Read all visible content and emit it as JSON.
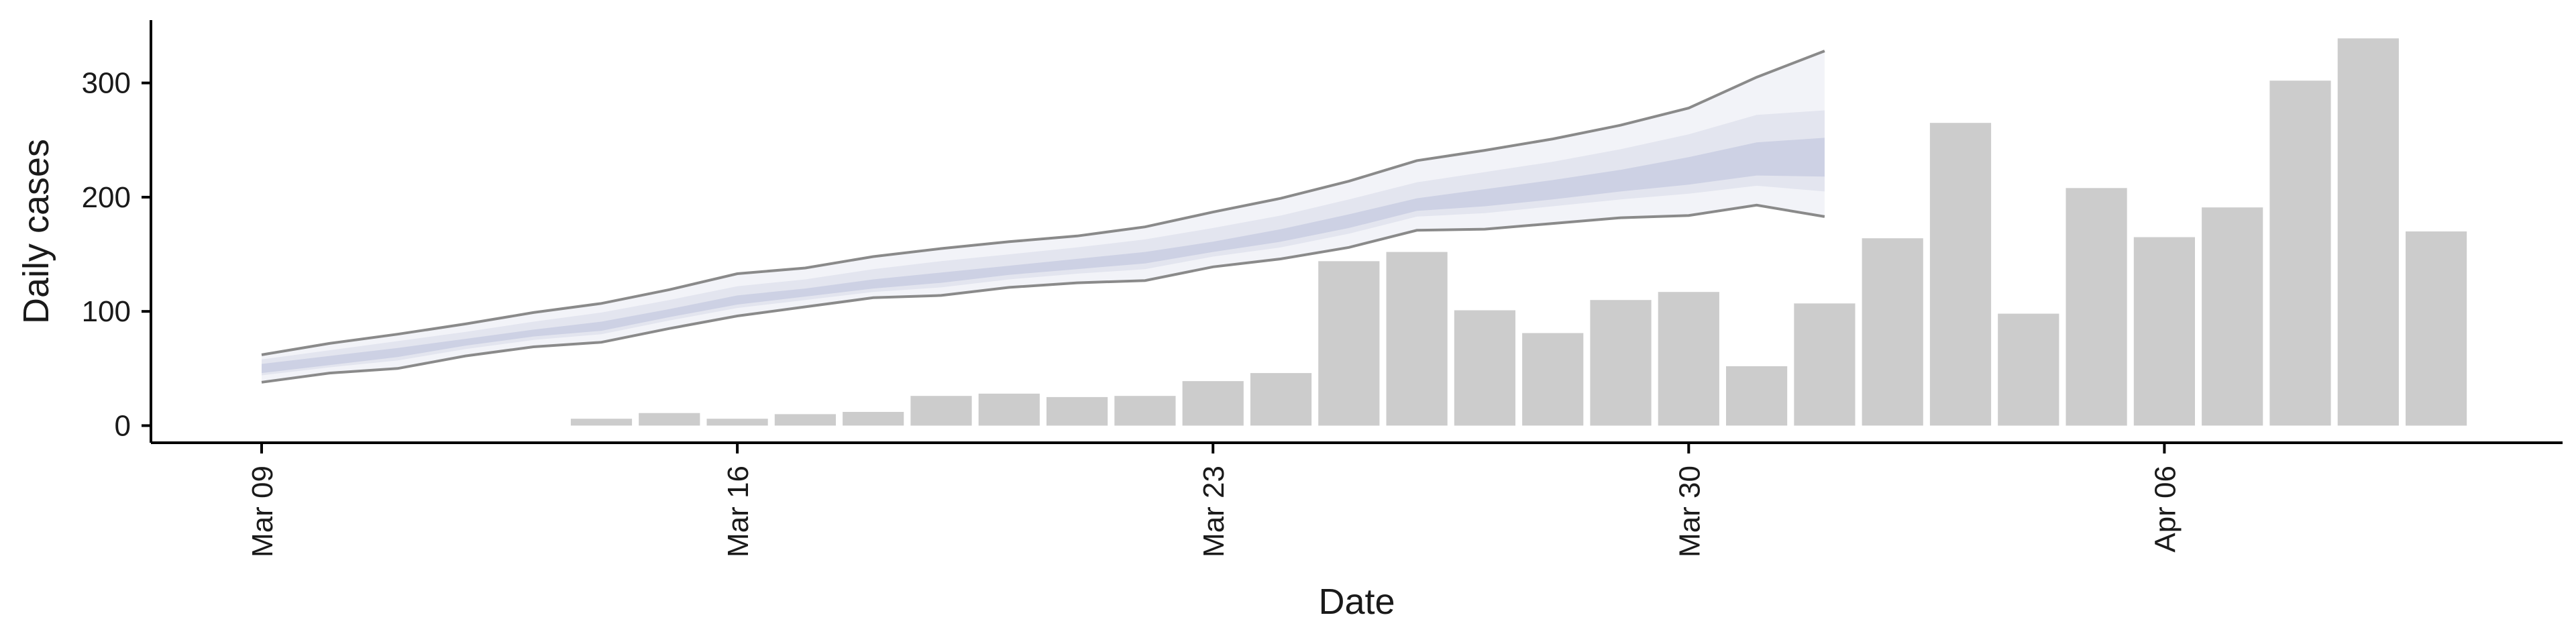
{
  "colors": {
    "bar": "#cccccc",
    "ribbon_outer": "#f2f3f8",
    "ribbon_mid": "#e3e5ef",
    "ribbon_inner": "#cdd1e4",
    "bound_line": "#8a8a8a",
    "axis": "#000000"
  },
  "chart_data": {
    "type": "bar",
    "xlabel": "Date",
    "ylabel": "Daily cases",
    "x_ticks": [
      "Mar 09",
      "Mar 16",
      "Mar 23",
      "Mar 30",
      "Apr 06"
    ],
    "y_ticks": [
      0,
      100,
      200,
      300
    ],
    "x_range": [
      "2020-03-08",
      "2020-04-12"
    ],
    "ylim": [
      -15,
      355
    ],
    "grid": false,
    "legend": "none",
    "bars": [
      {
        "date": "2020-03-14",
        "value": 6
      },
      {
        "date": "2020-03-15",
        "value": 11
      },
      {
        "date": "2020-03-16",
        "value": 6
      },
      {
        "date": "2020-03-17",
        "value": 10
      },
      {
        "date": "2020-03-18",
        "value": 12
      },
      {
        "date": "2020-03-19",
        "value": 26
      },
      {
        "date": "2020-03-20",
        "value": 28
      },
      {
        "date": "2020-03-21",
        "value": 25
      },
      {
        "date": "2020-03-22",
        "value": 26
      },
      {
        "date": "2020-03-23",
        "value": 39
      },
      {
        "date": "2020-03-24",
        "value": 46
      },
      {
        "date": "2020-03-25",
        "value": 144
      },
      {
        "date": "2020-03-26",
        "value": 152
      },
      {
        "date": "2020-03-27",
        "value": 101
      },
      {
        "date": "2020-03-28",
        "value": 81
      },
      {
        "date": "2020-03-29",
        "value": 110
      },
      {
        "date": "2020-03-30",
        "value": 117
      },
      {
        "date": "2020-03-31",
        "value": 52
      },
      {
        "date": "2020-04-01",
        "value": 107
      },
      {
        "date": "2020-04-02",
        "value": 164
      },
      {
        "date": "2020-04-03",
        "value": 265
      },
      {
        "date": "2020-04-04",
        "value": 98
      },
      {
        "date": "2020-04-05",
        "value": 208
      },
      {
        "date": "2020-04-06",
        "value": 165
      },
      {
        "date": "2020-04-07",
        "value": 191
      },
      {
        "date": "2020-04-08",
        "value": 302
      },
      {
        "date": "2020-04-09",
        "value": 339
      },
      {
        "date": "2020-04-10",
        "value": 170
      }
    ],
    "bounds": {
      "dates": [
        "2020-03-09",
        "2020-03-10",
        "2020-03-11",
        "2020-03-12",
        "2020-03-13",
        "2020-03-14",
        "2020-03-15",
        "2020-03-16",
        "2020-03-17",
        "2020-03-18",
        "2020-03-19",
        "2020-03-20",
        "2020-03-21",
        "2020-03-22",
        "2020-03-23",
        "2020-03-24",
        "2020-03-25",
        "2020-03-26",
        "2020-03-27",
        "2020-03-28",
        "2020-03-29",
        "2020-03-30",
        "2020-03-31",
        "2020-04-01"
      ],
      "upper": [
        62,
        72,
        80,
        89,
        99,
        107,
        119,
        133,
        138,
        148,
        155,
        161,
        166,
        174,
        187,
        199,
        214,
        232,
        241,
        251,
        263,
        278,
        305,
        328
      ],
      "lower": [
        38,
        46,
        50,
        61,
        69,
        73,
        85,
        96,
        104,
        112,
        114,
        121,
        125,
        127,
        139,
        146,
        156,
        171,
        172,
        177,
        182,
        184,
        193,
        183
      ]
    },
    "bands": [
      {
        "dates": [
          "2020-03-09",
          "2020-03-10",
          "2020-03-11",
          "2020-03-12",
          "2020-03-13",
          "2020-03-14",
          "2020-03-15",
          "2020-03-16",
          "2020-03-17",
          "2020-03-18",
          "2020-03-19",
          "2020-03-20",
          "2020-03-21",
          "2020-03-22",
          "2020-03-23",
          "2020-03-24",
          "2020-03-25",
          "2020-03-26",
          "2020-03-27",
          "2020-03-28",
          "2020-03-29",
          "2020-03-30",
          "2020-03-31",
          "2020-04-01"
        ],
        "upper": [
          58,
          66,
          74,
          82,
          91,
          99,
          110,
          122,
          128,
          137,
          144,
          150,
          156,
          163,
          173,
          184,
          198,
          213,
          222,
          231,
          242,
          255,
          272,
          276
        ],
        "lower": [
          44,
          51,
          57,
          67,
          75,
          80,
          92,
          103,
          110,
          117,
          121,
          128,
          133,
          137,
          148,
          156,
          168,
          183,
          186,
          192,
          198,
          203,
          210,
          205
        ]
      },
      {
        "dates": [
          "2020-03-09",
          "2020-03-10",
          "2020-03-11",
          "2020-03-12",
          "2020-03-13",
          "2020-03-14",
          "2020-03-15",
          "2020-03-16",
          "2020-03-17",
          "2020-03-18",
          "2020-03-19",
          "2020-03-20",
          "2020-03-21",
          "2020-03-22",
          "2020-03-23",
          "2020-03-24",
          "2020-03-25",
          "2020-03-26",
          "2020-03-27",
          "2020-03-28",
          "2020-03-29",
          "2020-03-30",
          "2020-03-31",
          "2020-04-01"
        ],
        "upper": [
          54,
          61,
          68,
          76,
          84,
          91,
          102,
          114,
          120,
          128,
          134,
          140,
          146,
          152,
          161,
          172,
          185,
          199,
          207,
          215,
          224,
          235,
          248,
          252
        ],
        "lower": [
          46,
          53,
          60,
          70,
          78,
          83,
          95,
          106,
          113,
          120,
          125,
          132,
          137,
          142,
          152,
          161,
          173,
          188,
          192,
          198,
          205,
          211,
          219,
          218
        ]
      }
    ]
  }
}
